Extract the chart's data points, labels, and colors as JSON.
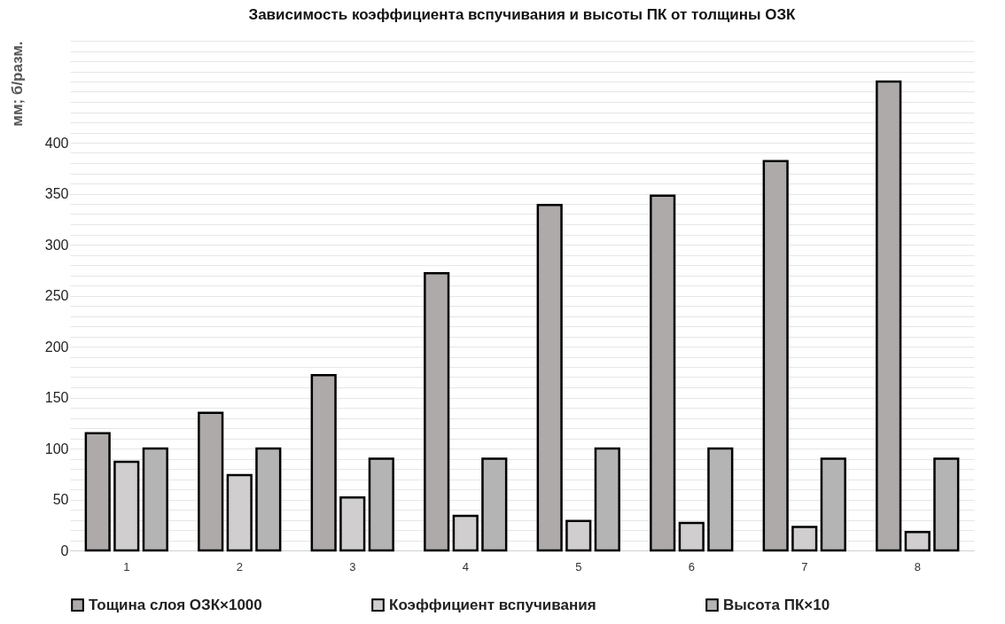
{
  "chart_data": {
    "type": "bar",
    "title": "Зависимость коэффициента вспучивания и высоты ПК от толщины ОЗК",
    "ylabel": "мм; б/разм.",
    "categories": [
      "1",
      "2",
      "3",
      "4",
      "5",
      "6",
      "7",
      "8"
    ],
    "series": [
      {
        "name": "Тощина слоя ОЗК×1000",
        "color": "#aeaaaa",
        "values": [
          115,
          135,
          172,
          272,
          339,
          348,
          382,
          460
        ]
      },
      {
        "name": "Коэффициент вспучивания",
        "color": "#d0cece",
        "values": [
          87,
          74,
          52,
          34,
          29,
          27,
          23,
          18
        ]
      },
      {
        "name": "Высота ПК×10",
        "color": "#b4b4b4",
        "values": [
          100,
          100,
          90,
          90,
          100,
          100,
          90,
          90
        ]
      }
    ],
    "ylim": [
      0,
      500
    ],
    "yticks": [
      0,
      {
        "value": 10,
        "label": null
      },
      {
        "value": 20,
        "label": null
      },
      {
        "value": 30,
        "label": null
      },
      {
        "value": 40,
        "label": null
      },
      50,
      {
        "value": 60,
        "label": null
      },
      {
        "value": 70,
        "label": null
      },
      {
        "value": 80,
        "label": null
      },
      {
        "value": 90,
        "label": null
      },
      100,
      {
        "value": 110,
        "label": null
      },
      {
        "value": 120,
        "label": null
      },
      {
        "value": 130,
        "label": null
      },
      {
        "value": 140,
        "label": null
      },
      150,
      {
        "value": 160,
        "label": null
      },
      {
        "value": 170,
        "label": null
      },
      {
        "value": 180,
        "label": null
      },
      {
        "value": 190,
        "label": null
      },
      200,
      {
        "value": 210,
        "label": null
      },
      {
        "value": 220,
        "label": null
      },
      {
        "value": 230,
        "label": null
      },
      {
        "value": 240,
        "label": null
      },
      250,
      {
        "value": 260,
        "label": null
      },
      {
        "value": 270,
        "label": null
      },
      {
        "value": 280,
        "label": null
      },
      {
        "value": 290,
        "label": null
      },
      300,
      {
        "value": 310,
        "label": null
      },
      {
        "value": 320,
        "label": null
      },
      {
        "value": 330,
        "label": null
      },
      {
        "value": 340,
        "label": null
      },
      350,
      {
        "value": 360,
        "label": null
      },
      {
        "value": 370,
        "label": null
      },
      {
        "value": 380,
        "label": null
      },
      {
        "value": 390,
        "label": null
      },
      400,
      {
        "value": 410,
        "label": null
      },
      {
        "value": 420,
        "label": null
      },
      {
        "value": 430,
        "label": null
      },
      {
        "value": 440,
        "label": null
      },
      {
        "value": 450,
        "label": null
      },
      {
        "value": 460,
        "label": null
      },
      {
        "value": 470,
        "label": null
      },
      {
        "value": 480,
        "label": null
      },
      {
        "value": 490,
        "label": null
      },
      {
        "value": 500,
        "label": null
      }
    ],
    "grid": "y",
    "legend": "bottom"
  }
}
